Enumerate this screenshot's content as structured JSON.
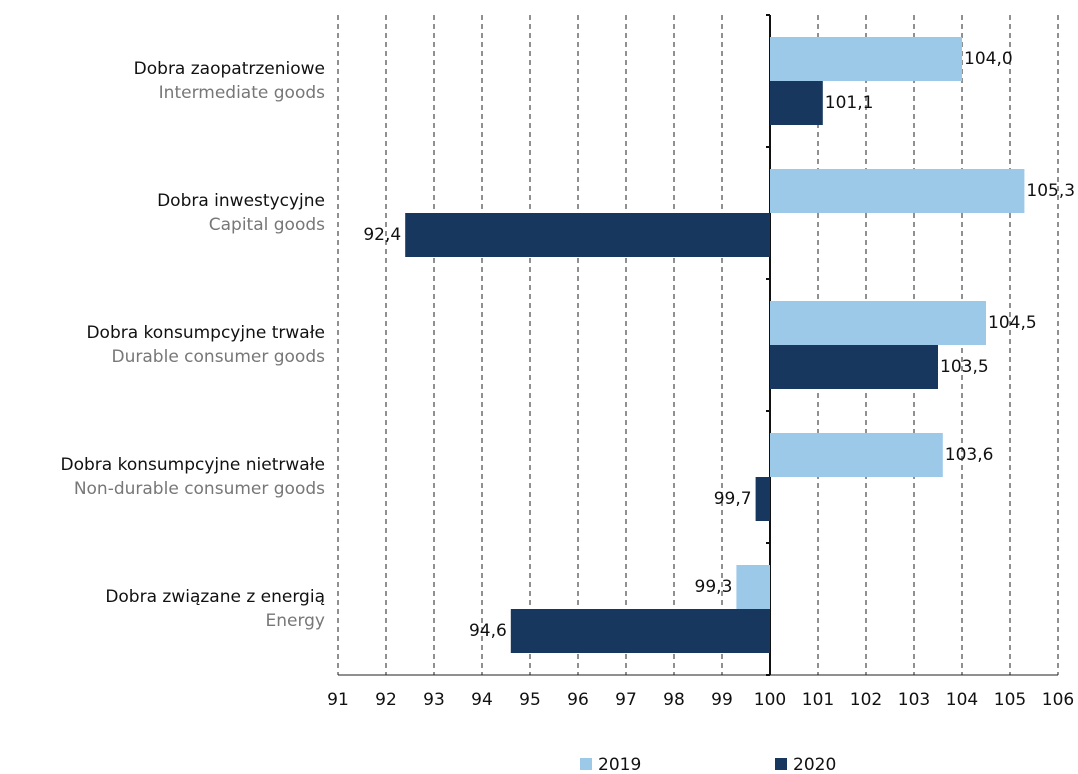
{
  "chart_data": {
    "type": "hbar",
    "categories": [
      "Dobra zaopatrzeniowe",
      "Dobra inwestycyjne",
      "Dobra konsumpcyjne trwałe",
      "Dobra konsumpcyjne nietrwałe",
      "Dobra związane z energią"
    ],
    "category_subtitles": [
      "Intermediate goods",
      "Capital goods",
      "Durable consumer goods",
      "Non-durable consumer goods",
      "Energy"
    ],
    "series": [
      {
        "name": "2019",
        "color": "#9dc9e9",
        "values": [
          104.0,
          105.3,
          104.5,
          103.6,
          99.3
        ],
        "value_labels": [
          "104,0",
          "105,3",
          "104,5",
          "103,6",
          "99,3"
        ]
      },
      {
        "name": "2020",
        "color": "#17375e",
        "values": [
          101.1,
          92.4,
          103.5,
          99.7,
          94.6
        ],
        "value_labels": [
          "101,1",
          "92,4",
          "103,5",
          "99,7",
          "94,6"
        ]
      }
    ],
    "baseline": 100,
    "xlim": [
      91,
      106
    ],
    "xticks": [
      91,
      92,
      93,
      94,
      95,
      96,
      97,
      98,
      99,
      100,
      101,
      102,
      103,
      104,
      105,
      106
    ],
    "grid": true
  }
}
